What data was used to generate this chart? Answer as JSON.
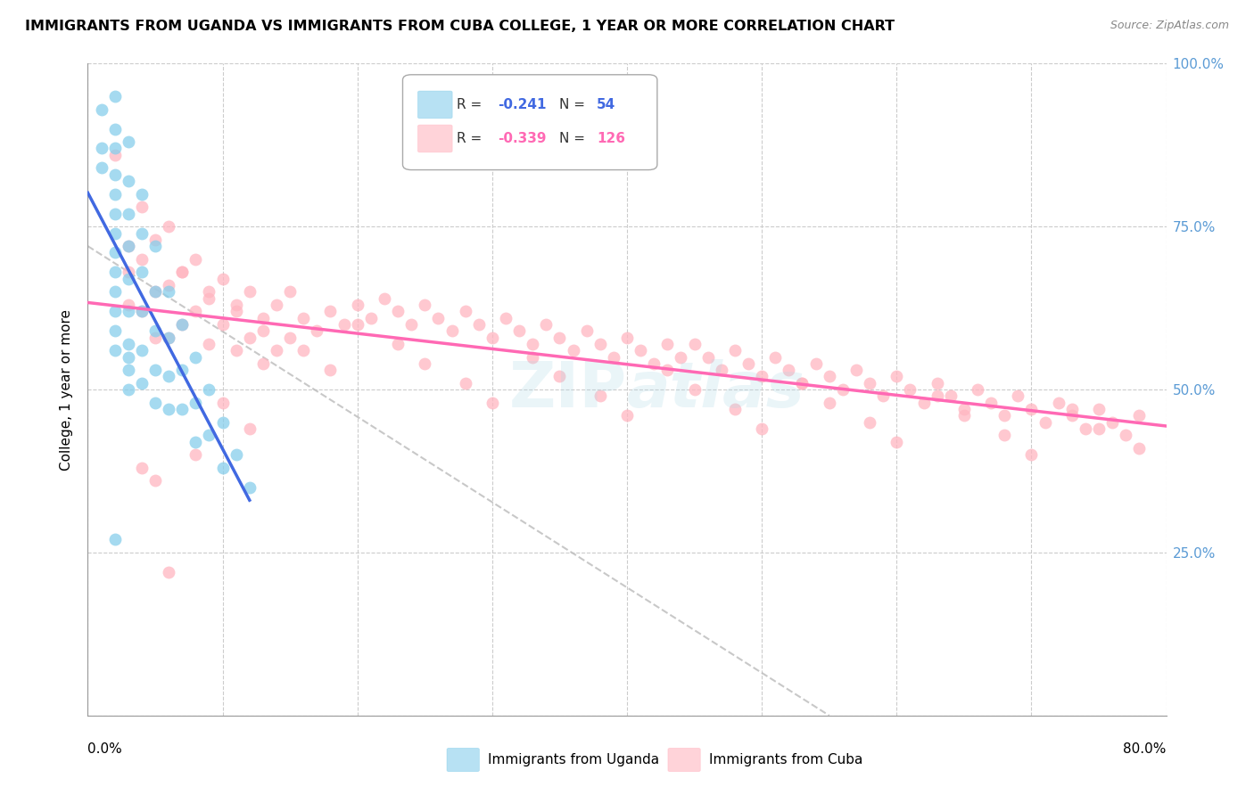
{
  "title": "IMMIGRANTS FROM UGANDA VS IMMIGRANTS FROM CUBA COLLEGE, 1 YEAR OR MORE CORRELATION CHART",
  "source": "Source: ZipAtlas.com",
  "ylabel": "College, 1 year or more",
  "uganda_R": -0.241,
  "uganda_N": 54,
  "cuba_R": -0.339,
  "cuba_N": 126,
  "legend_label_uganda": "Immigrants from Uganda",
  "legend_label_cuba": "Immigrants from Cuba",
  "uganda_color": "#87CEEB",
  "cuba_color": "#FFB6C1",
  "uganda_line_color": "#4169E1",
  "cuba_line_color": "#FF69B4",
  "dashed_line_color": "#BBBBBB",
  "watermark": "ZIPAtlas",
  "xlim": [
    0.0,
    0.8
  ],
  "ylim": [
    0.0,
    1.0
  ],
  "uganda_scatter_x": [
    0.01,
    0.01,
    0.01,
    0.02,
    0.02,
    0.02,
    0.02,
    0.02,
    0.02,
    0.02,
    0.02,
    0.02,
    0.02,
    0.02,
    0.02,
    0.02,
    0.03,
    0.03,
    0.03,
    0.03,
    0.03,
    0.03,
    0.03,
    0.03,
    0.03,
    0.04,
    0.04,
    0.04,
    0.04,
    0.04,
    0.04,
    0.05,
    0.05,
    0.05,
    0.05,
    0.05,
    0.06,
    0.06,
    0.06,
    0.06,
    0.07,
    0.07,
    0.07,
    0.08,
    0.08,
    0.08,
    0.09,
    0.09,
    0.1,
    0.1,
    0.11,
    0.12,
    0.02,
    0.03
  ],
  "uganda_scatter_y": [
    0.93,
    0.87,
    0.84,
    0.95,
    0.9,
    0.87,
    0.83,
    0.8,
    0.77,
    0.74,
    0.71,
    0.68,
    0.65,
    0.62,
    0.59,
    0.56,
    0.88,
    0.82,
    0.77,
    0.72,
    0.67,
    0.62,
    0.57,
    0.53,
    0.5,
    0.8,
    0.74,
    0.68,
    0.62,
    0.56,
    0.51,
    0.72,
    0.65,
    0.59,
    0.53,
    0.48,
    0.65,
    0.58,
    0.52,
    0.47,
    0.6,
    0.53,
    0.47,
    0.55,
    0.48,
    0.42,
    0.5,
    0.43,
    0.45,
    0.38,
    0.4,
    0.35,
    0.27,
    0.55
  ],
  "cuba_scatter_x": [
    0.02,
    0.03,
    0.03,
    0.03,
    0.04,
    0.04,
    0.04,
    0.05,
    0.05,
    0.05,
    0.06,
    0.06,
    0.06,
    0.07,
    0.07,
    0.08,
    0.08,
    0.09,
    0.09,
    0.1,
    0.1,
    0.11,
    0.11,
    0.12,
    0.12,
    0.13,
    0.13,
    0.14,
    0.14,
    0.15,
    0.15,
    0.16,
    0.17,
    0.18,
    0.19,
    0.2,
    0.21,
    0.22,
    0.23,
    0.24,
    0.25,
    0.26,
    0.27,
    0.28,
    0.29,
    0.3,
    0.31,
    0.32,
    0.33,
    0.34,
    0.35,
    0.36,
    0.37,
    0.38,
    0.39,
    0.4,
    0.41,
    0.42,
    0.43,
    0.44,
    0.45,
    0.46,
    0.47,
    0.48,
    0.49,
    0.5,
    0.51,
    0.52,
    0.53,
    0.54,
    0.55,
    0.56,
    0.57,
    0.58,
    0.59,
    0.6,
    0.61,
    0.62,
    0.63,
    0.64,
    0.65,
    0.66,
    0.67,
    0.68,
    0.69,
    0.7,
    0.71,
    0.72,
    0.73,
    0.74,
    0.75,
    0.76,
    0.77,
    0.78,
    0.07,
    0.09,
    0.11,
    0.13,
    0.16,
    0.18,
    0.2,
    0.23,
    0.25,
    0.28,
    0.3,
    0.33,
    0.35,
    0.38,
    0.4,
    0.43,
    0.45,
    0.48,
    0.5,
    0.53,
    0.55,
    0.58,
    0.6,
    0.63,
    0.65,
    0.68,
    0.7,
    0.73,
    0.75,
    0.78,
    0.04,
    0.05,
    0.06,
    0.08,
    0.1,
    0.12
  ],
  "cuba_scatter_y": [
    0.86,
    0.72,
    0.68,
    0.63,
    0.78,
    0.7,
    0.62,
    0.73,
    0.65,
    0.58,
    0.75,
    0.66,
    0.58,
    0.68,
    0.6,
    0.7,
    0.62,
    0.64,
    0.57,
    0.67,
    0.6,
    0.63,
    0.56,
    0.65,
    0.58,
    0.61,
    0.54,
    0.63,
    0.56,
    0.65,
    0.58,
    0.61,
    0.59,
    0.62,
    0.6,
    0.63,
    0.61,
    0.64,
    0.62,
    0.6,
    0.63,
    0.61,
    0.59,
    0.62,
    0.6,
    0.58,
    0.61,
    0.59,
    0.57,
    0.6,
    0.58,
    0.56,
    0.59,
    0.57,
    0.55,
    0.58,
    0.56,
    0.54,
    0.57,
    0.55,
    0.57,
    0.55,
    0.53,
    0.56,
    0.54,
    0.52,
    0.55,
    0.53,
    0.51,
    0.54,
    0.52,
    0.5,
    0.53,
    0.51,
    0.49,
    0.52,
    0.5,
    0.48,
    0.51,
    0.49,
    0.47,
    0.5,
    0.48,
    0.46,
    0.49,
    0.47,
    0.45,
    0.48,
    0.46,
    0.44,
    0.47,
    0.45,
    0.43,
    0.46,
    0.68,
    0.65,
    0.62,
    0.59,
    0.56,
    0.53,
    0.6,
    0.57,
    0.54,
    0.51,
    0.48,
    0.55,
    0.52,
    0.49,
    0.46,
    0.53,
    0.5,
    0.47,
    0.44,
    0.51,
    0.48,
    0.45,
    0.42,
    0.49,
    0.46,
    0.43,
    0.4,
    0.47,
    0.44,
    0.41,
    0.38,
    0.36,
    0.22,
    0.4,
    0.48,
    0.44
  ]
}
